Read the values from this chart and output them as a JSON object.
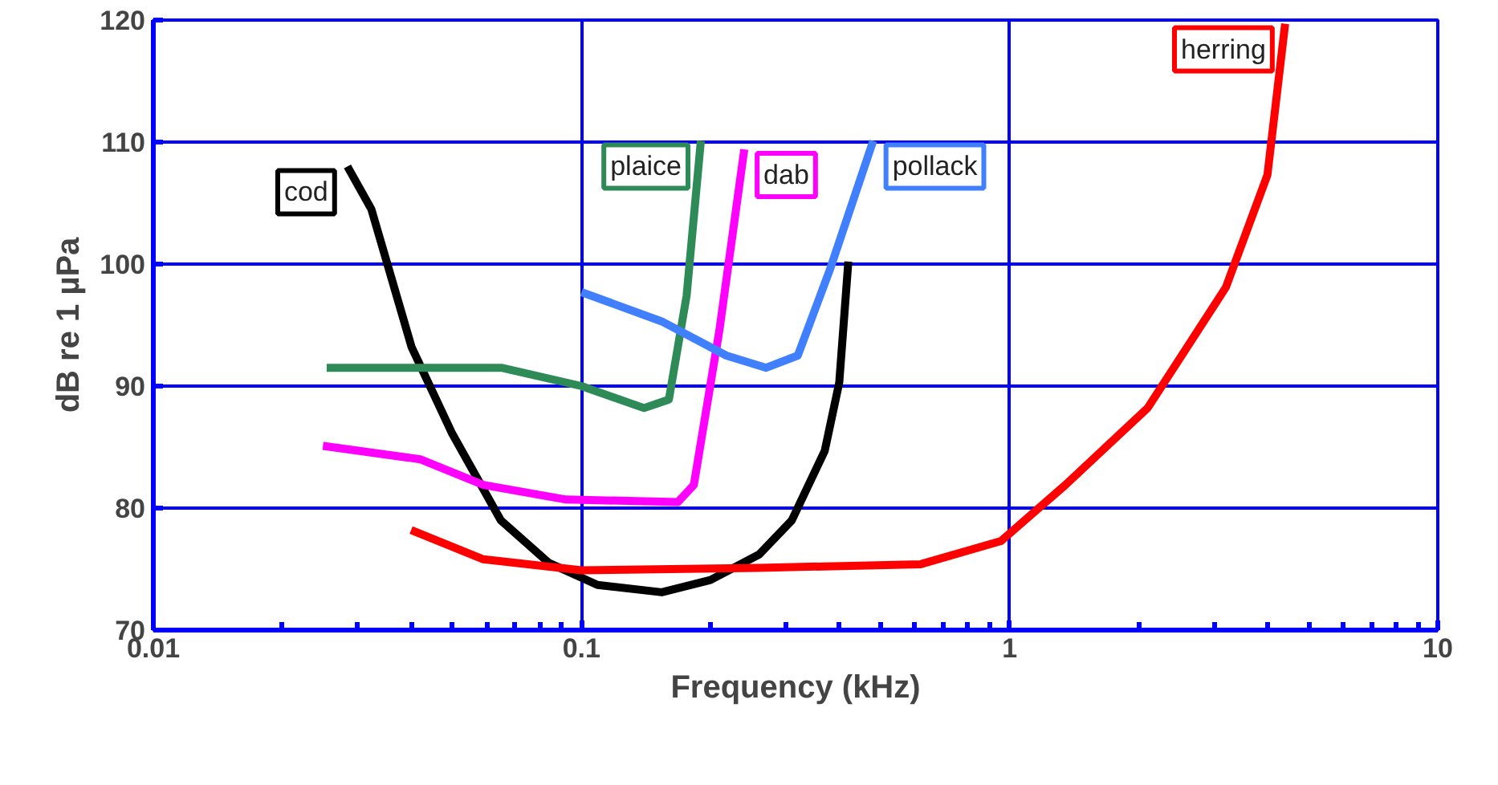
{
  "chart_data": {
    "type": "line",
    "xlabel": "Frequency (kHz)",
    "ylabel": "dB re 1 µPa",
    "log": "x",
    "xlim": [
      0.01,
      10
    ],
    "xticks": [
      0.01,
      0.1,
      1,
      10
    ],
    "ylim": [
      70,
      120
    ],
    "yticks": [
      70,
      80,
      90,
      100,
      110,
      120
    ],
    "grid": true,
    "marker": "none",
    "line_style": "solid",
    "series": [
      {
        "name": "cod",
        "color": "#000000",
        "x": [
          0.0284,
          0.0323,
          0.0401,
          0.0499,
          0.0648,
          0.084,
          0.109,
          0.154,
          0.2,
          0.26,
          0.31,
          0.37,
          0.4,
          0.42
        ],
        "values": [
          108,
          104.5,
          93.2,
          86.1,
          79,
          75.5,
          73.7,
          73.1,
          74.1,
          76.2,
          79,
          84.7,
          90.3,
          100.2
        ]
      },
      {
        "name": "plaice",
        "color": "#2e8b57",
        "x": [
          0.0254,
          0.065,
          0.1,
          0.14,
          0.16,
          0.176,
          0.19
        ],
        "values": [
          91.5,
          91.5,
          90,
          88.2,
          88.9,
          97.4,
          110.1
        ]
      },
      {
        "name": "dab",
        "color": "#ff00ff",
        "x": [
          0.0249,
          0.042,
          0.059,
          0.092,
          0.168,
          0.183,
          0.21,
          0.24
        ],
        "values": [
          85.1,
          84,
          81.9,
          80.7,
          80.5,
          81.9,
          94.6,
          109.4
        ]
      },
      {
        "name": "pollack",
        "color": "#4080ff",
        "x": [
          0.1,
          0.154,
          0.218,
          0.27,
          0.32,
          0.38,
          0.48
        ],
        "values": [
          97.7,
          95.3,
          92.5,
          91.5,
          92.5,
          99.5,
          110.1
        ]
      },
      {
        "name": "herring",
        "color": "#ff0000",
        "x": [
          0.04,
          0.059,
          0.1,
          0.26,
          0.62,
          0.955,
          1.35,
          2.1,
          3.2,
          4.0,
          4.4
        ],
        "values": [
          78.2,
          75.8,
          74.9,
          75.1,
          75.4,
          77.3,
          81.9,
          88.2,
          98.1,
          107.3,
          119.7
        ]
      }
    ]
  }
}
